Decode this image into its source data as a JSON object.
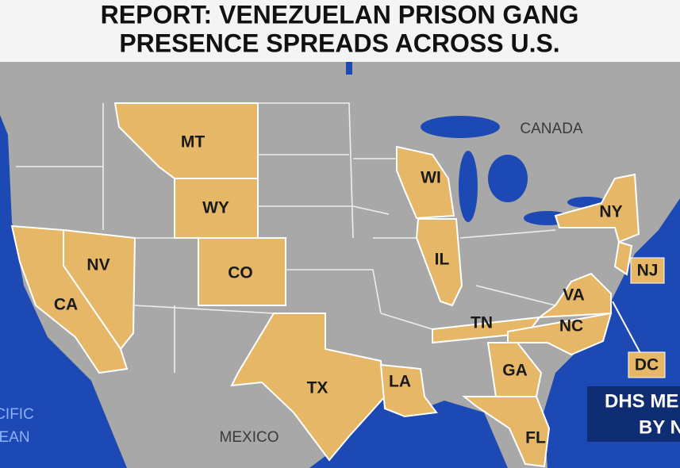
{
  "title": {
    "lines": [
      "REPORT: VENEZUELAN PRISON GANG",
      "PRESENCE SPREADS ACROSS U.S."
    ]
  },
  "states": [
    "MT",
    "WY",
    "CO",
    "NV",
    "CA",
    "TX",
    "WI",
    "IL",
    "NY",
    "NJ",
    "VA",
    "TN",
    "NC",
    "GA",
    "LA",
    "FL",
    "DC"
  ],
  "places": [
    "CANADA",
    "MEXICO",
    "CIFIC",
    "EAN"
  ],
  "banner": [
    "DHS ME",
    "BY N"
  ]
}
